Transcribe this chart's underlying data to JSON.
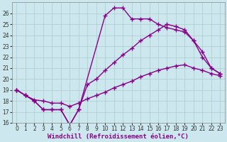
{
  "title": "",
  "xlabel": "Windchill (Refroidissement éolien,°C)",
  "ylabel": "",
  "bg_color": "#cce8ee",
  "line_color": "#880088",
  "grid_color": "#aacccc",
  "xlim": [
    -0.5,
    23.5
  ],
  "ylim": [
    16,
    27
  ],
  "yticks": [
    16,
    17,
    18,
    19,
    20,
    21,
    22,
    23,
    24,
    25,
    26
  ],
  "xticks": [
    0,
    1,
    2,
    3,
    4,
    5,
    6,
    7,
    8,
    9,
    10,
    11,
    12,
    13,
    14,
    15,
    16,
    17,
    18,
    19,
    20,
    21,
    22,
    23
  ],
  "line1_x": [
    0,
    1,
    2,
    3,
    4,
    5,
    6,
    7,
    10,
    11,
    12,
    13,
    14,
    15,
    16,
    17,
    18,
    19,
    20,
    21,
    22,
    23
  ],
  "line1_y": [
    19.0,
    18.5,
    18.0,
    17.2,
    17.2,
    17.2,
    15.8,
    17.2,
    25.8,
    26.5,
    26.5,
    25.5,
    25.5,
    25.5,
    25.0,
    24.7,
    24.5,
    24.3,
    23.5,
    22.0,
    21.0,
    20.5
  ],
  "line2_x": [
    0,
    1,
    2,
    3,
    4,
    5,
    6,
    7,
    8,
    9,
    10,
    11,
    12,
    13,
    14,
    15,
    16,
    17,
    18,
    19,
    20,
    21,
    22,
    23
  ],
  "line2_y": [
    19.0,
    18.5,
    18.0,
    17.2,
    17.2,
    17.2,
    15.8,
    17.2,
    19.5,
    20.0,
    20.8,
    21.5,
    22.2,
    22.8,
    23.5,
    24.0,
    24.5,
    25.0,
    24.8,
    24.5,
    23.5,
    22.5,
    21.0,
    20.5
  ],
  "line3_x": [
    0,
    1,
    2,
    3,
    4,
    5,
    6,
    7,
    8,
    9,
    10,
    11,
    12,
    13,
    14,
    15,
    16,
    17,
    18,
    19,
    20,
    21,
    22,
    23
  ],
  "line3_y": [
    19.0,
    18.5,
    18.1,
    18.0,
    17.8,
    17.8,
    17.5,
    17.8,
    18.2,
    18.5,
    18.8,
    19.2,
    19.5,
    19.8,
    20.2,
    20.5,
    20.8,
    21.0,
    21.2,
    21.3,
    21.0,
    20.8,
    20.5,
    20.3
  ],
  "marker": "+",
  "markersize": 4,
  "linewidth": 1.0,
  "tick_fontsize": 5.5,
  "xlabel_fontsize": 6.5
}
